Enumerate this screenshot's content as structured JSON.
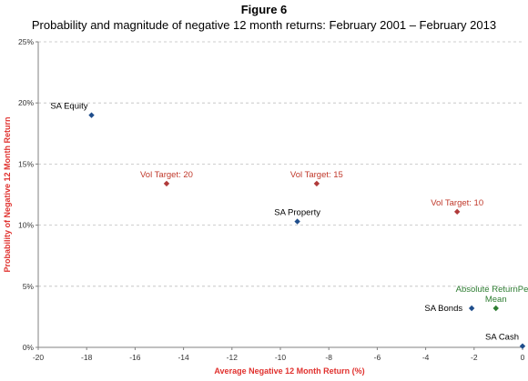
{
  "figure_title": "Figure 6",
  "chart_data": {
    "type": "scatter",
    "title": "Probability and magnitude of negative 12 month returns: February 2001 – February 2013",
    "xlabel": {
      "parts": [
        {
          "text": "Average Negative ",
          "color": "#e0312e"
        },
        {
          "text": "12 Month Return (%)",
          "color": "#e0312e"
        }
      ]
    },
    "ylabel": {
      "parts": [
        {
          "text": "Probability of ",
          "color": "#e0312e"
        },
        {
          "text": "Negative 12 Month Return",
          "color": "#e0312e"
        }
      ]
    },
    "xlim": [
      -20,
      0
    ],
    "ylim": [
      0,
      25
    ],
    "x_ticks": [
      -20,
      -18,
      -16,
      -14,
      -12,
      -10,
      -8,
      -6,
      -4,
      -2,
      0
    ],
    "y_ticks": [
      0,
      5,
      10,
      15,
      20,
      25
    ],
    "y_tick_labels": [
      "0%",
      "5%",
      "10%",
      "15%",
      "20%",
      "25%"
    ],
    "grid": "horizontal-dashed",
    "points": [
      {
        "label": "SA Equity",
        "x": -17.8,
        "y": 19.0,
        "color": "#1f4e8c",
        "label_color": "#000000",
        "label_pos": "above-left"
      },
      {
        "label": "Vol Target: 20",
        "x": -14.7,
        "y": 13.4,
        "color": "#b03a3a",
        "label_color": "#c0392b",
        "label_pos": "above"
      },
      {
        "label": "Vol Target: 15",
        "x": -8.5,
        "y": 13.4,
        "color": "#b03a3a",
        "label_color": "#c0392b",
        "label_pos": "above"
      },
      {
        "label": "SA Property",
        "x": -9.3,
        "y": 10.3,
        "color": "#1f4e8c",
        "label_color": "#000000",
        "label_pos": "above"
      },
      {
        "label": "Vol Target: 10",
        "x": -2.7,
        "y": 11.1,
        "color": "#b03a3a",
        "label_color": "#c0392b",
        "label_pos": "above"
      },
      {
        "label": "SA Bonds",
        "x": -2.1,
        "y": 3.2,
        "color": "#1f4e8c",
        "label_color": "#000000",
        "label_pos": "left"
      },
      {
        "label": "Absolute Return Peer Mean",
        "label_lines": [
          "Absolute ReturnPeer",
          "Mean"
        ],
        "x": -1.1,
        "y": 3.2,
        "color": "#2e7d32",
        "label_color": "#2e7d32",
        "label_pos": "above"
      },
      {
        "label": "SA Cash",
        "x": 0.0,
        "y": 0.1,
        "color": "#1f4e8c",
        "label_color": "#000000",
        "label_pos": "above-left"
      }
    ]
  }
}
